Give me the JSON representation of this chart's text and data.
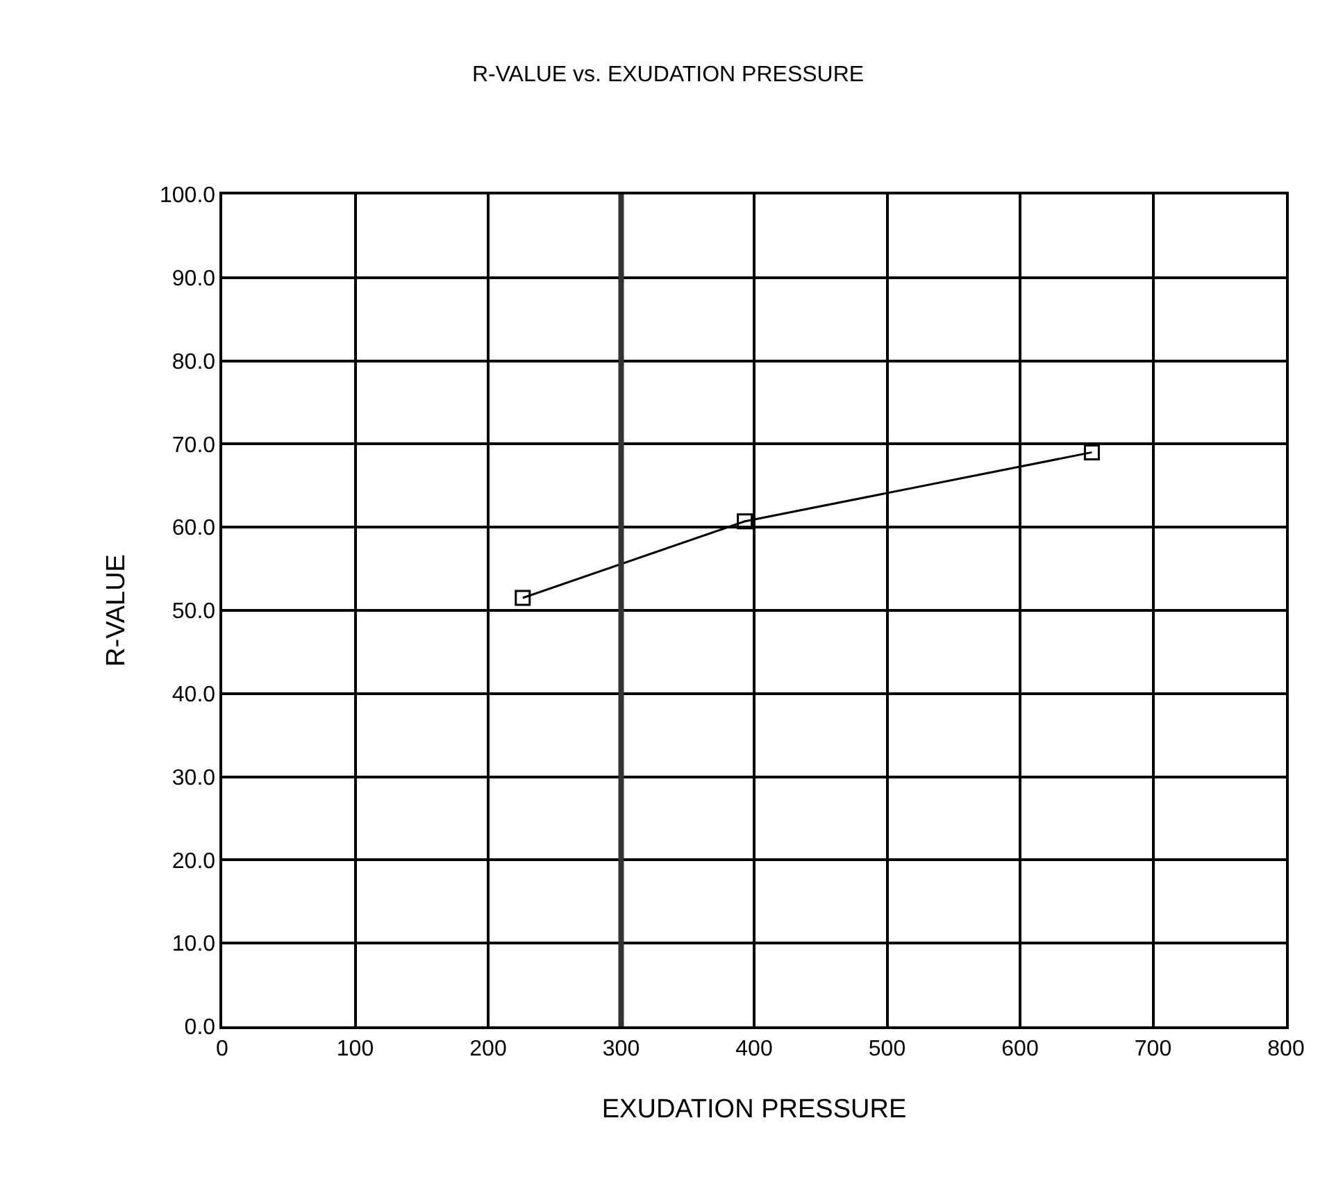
{
  "chart_data": {
    "type": "line",
    "title": "R-VALUE vs. EXUDATION PRESSURE",
    "xlabel": "EXUDATION PRESSURE",
    "ylabel": "R-VALUE",
    "x": [
      226,
      393,
      654
    ],
    "series": [
      {
        "color": "#000000",
        "values": [
          51.5,
          60.7,
          69.0
        ]
      }
    ],
    "xlim": [
      0,
      800
    ],
    "xticks": [
      0,
      100,
      200,
      300,
      400,
      500,
      600,
      700,
      800
    ],
    "ylim": [
      0,
      100
    ],
    "yticks": [
      {
        "value": 0,
        "label": "0.0"
      },
      {
        "value": 10,
        "label": "10.0"
      },
      {
        "value": 20,
        "label": "20.0"
      },
      {
        "value": 30,
        "label": "30.0"
      },
      {
        "value": 40,
        "label": "40.0"
      },
      {
        "value": 50,
        "label": "50.0"
      },
      {
        "value": 60,
        "label": "60.0"
      },
      {
        "value": 70,
        "label": "70.0"
      },
      {
        "value": 80,
        "label": "80.0"
      },
      {
        "value": 90,
        "label": "90.0"
      },
      {
        "value": 100,
        "label": "100.0"
      }
    ],
    "ref_lines": [
      {
        "axis": "x",
        "value": 300,
        "label": null,
        "color": "#333333"
      }
    ],
    "grid": true,
    "legend": false,
    "marker": "square",
    "line_style": "solid"
  }
}
